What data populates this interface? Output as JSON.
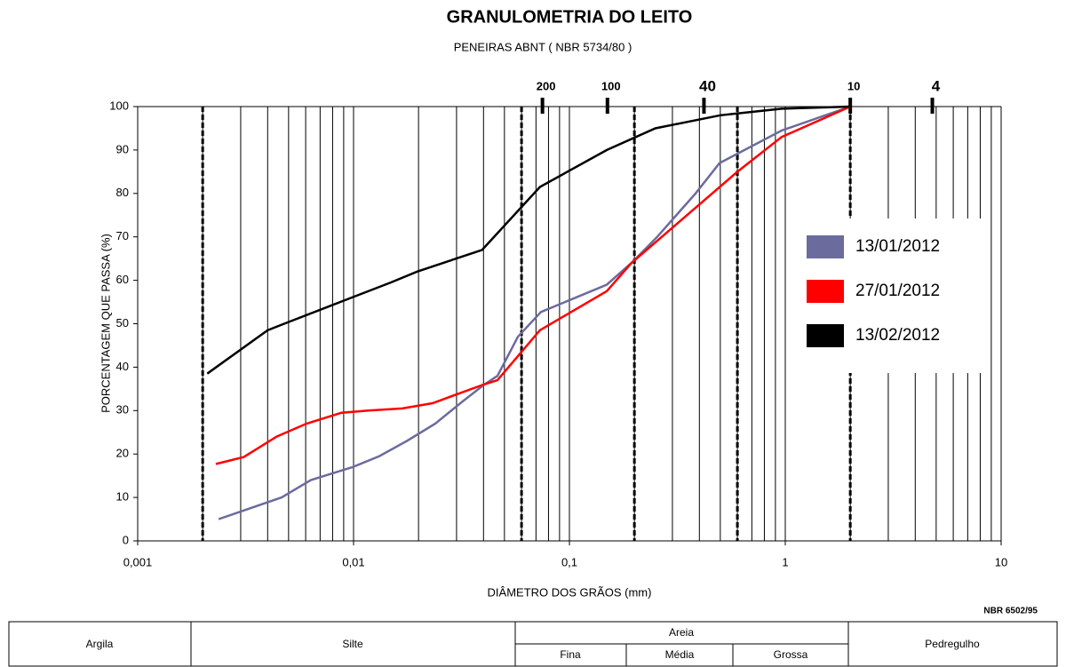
{
  "chart_data": {
    "type": "line",
    "title": "GRANULOMETRIA DO LEITO",
    "subtitle": "PENEIRAS ABNT ( NBR 5734/80 )",
    "x_label": "DIÂMETRO DOS GRÃOS (mm)",
    "y_label": "PORCENTAGEM QUE PASSA (%)",
    "note": "NBR 6502/95",
    "xscale": "log",
    "xlim": [
      0.001,
      10
    ],
    "xticks": [
      {
        "value": 0.001,
        "label": "0,001"
      },
      {
        "value": 0.01,
        "label": "0,01"
      },
      {
        "value": 0.1,
        "label": "0,1"
      },
      {
        "value": 1,
        "label": "1"
      },
      10
    ],
    "ylim": [
      0,
      100
    ],
    "yticks": [
      0,
      10,
      20,
      30,
      40,
      50,
      60,
      70,
      80,
      90,
      100
    ],
    "grid": true,
    "legend": "right",
    "class_limits": [
      0.002,
      0.06,
      0.2,
      0.6,
      2
    ],
    "sieves": {
      "labels": [
        "200",
        "100",
        "40",
        "10",
        "4"
      ],
      "mm": [
        0.075,
        0.15,
        0.42,
        2,
        4.8
      ]
    },
    "series": [
      {
        "name": "13/01/2012",
        "color": "#6b6b9e",
        "x": [
          0.00237,
          0.00464,
          0.00634,
          0.0099,
          0.01316,
          0.01766,
          0.0239,
          0.0318,
          0.0403,
          0.0464,
          0.0577,
          0.0738,
          0.149,
          0.194,
          0.255,
          0.384,
          0.496,
          0.963,
          2
        ],
        "values": [
          5,
          10,
          14,
          17,
          19.5,
          23,
          27,
          32,
          36,
          38,
          47,
          52.7,
          59,
          64,
          70,
          80,
          87,
          94.5,
          100
        ]
      },
      {
        "name": "27/01/2012",
        "color": "#ff0000",
        "x": [
          0.0023,
          0.0031,
          0.0044,
          0.00605,
          0.0088,
          0.0117,
          0.0168,
          0.0232,
          0.04,
          0.0464,
          0.073,
          0.149,
          0.194,
          0.6,
          0.963,
          2
        ],
        "values": [
          17.7,
          19.3,
          24,
          27,
          29.5,
          30,
          30.5,
          31.7,
          36,
          37,
          48.5,
          57.5,
          64,
          85,
          93,
          100
        ]
      },
      {
        "name": "13/02/2012",
        "color": "#000000",
        "x": [
          0.0021,
          0.004,
          0.00477,
          0.0077,
          0.0149,
          0.0197,
          0.0394,
          0.073,
          0.149,
          0.25,
          0.5,
          0.963,
          2
        ],
        "values": [
          38.5,
          48.5,
          50,
          54,
          59.5,
          62,
          67,
          81.5,
          90,
          95,
          98,
          99.5,
          100
        ]
      }
    ]
  },
  "classification": {
    "argila": "Argila",
    "silte": "Silte",
    "areia": "Areia",
    "fina": "Fina",
    "media": "Média",
    "grossa": "Grossa",
    "pedregulho": "Pedregulho"
  }
}
